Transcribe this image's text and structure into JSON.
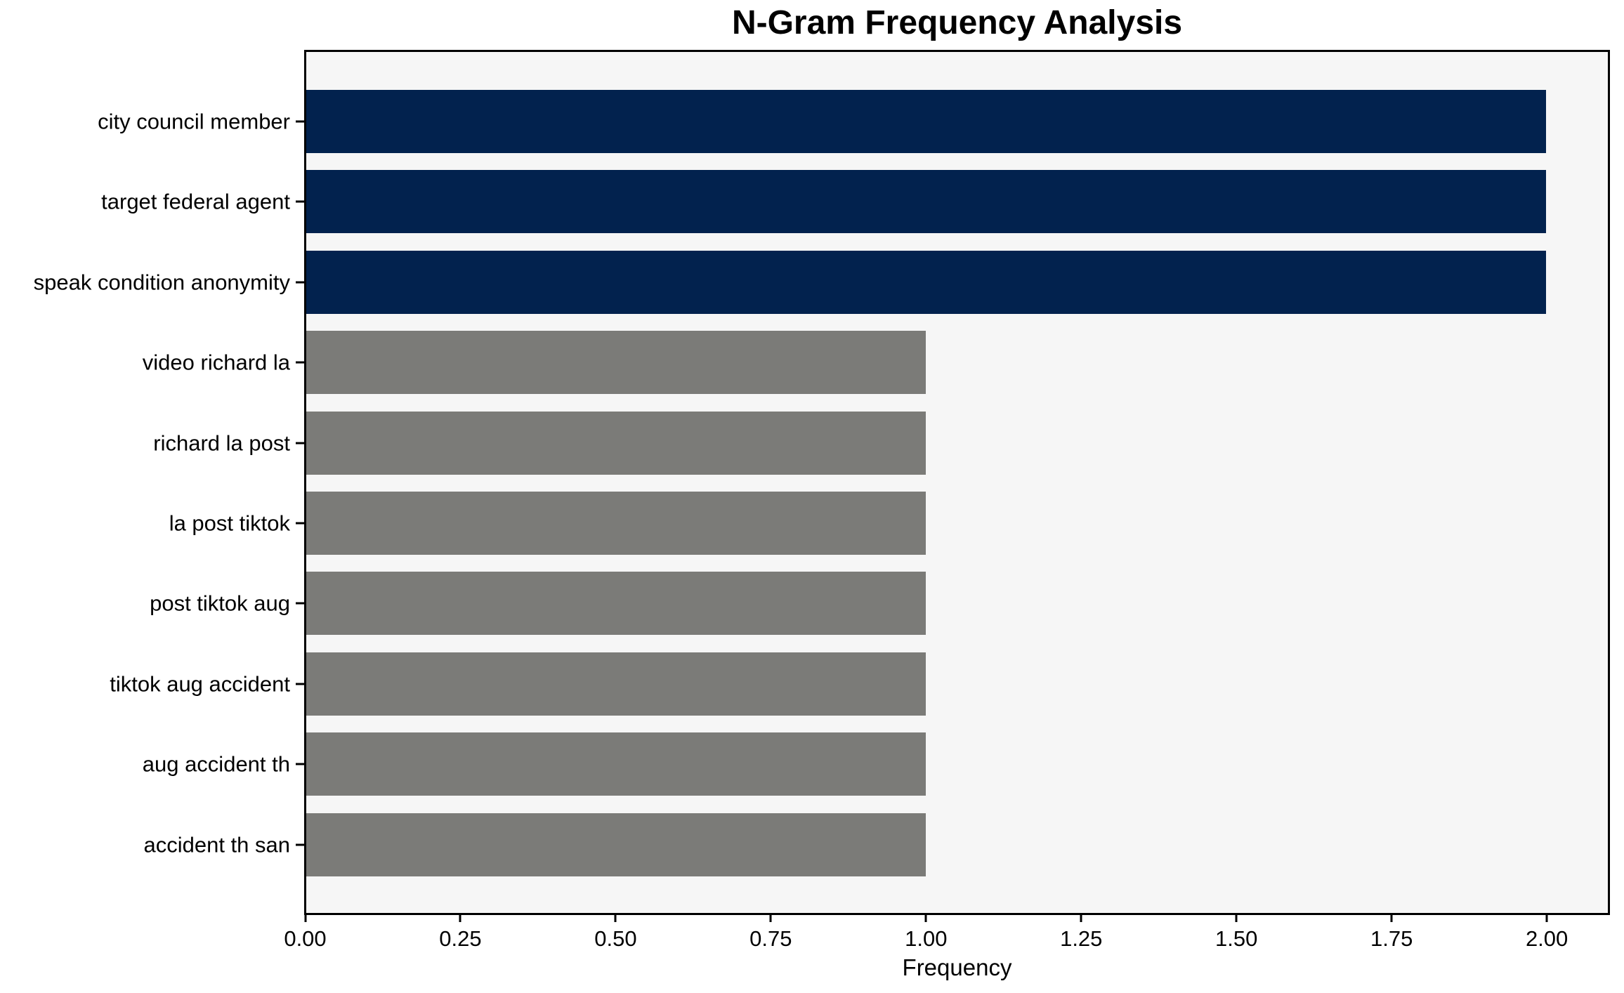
{
  "chart_data": {
    "type": "bar",
    "orientation": "horizontal",
    "title": "N-Gram Frequency Analysis",
    "xlabel": "Frequency",
    "categories": [
      "city council member",
      "target federal agent",
      "speak condition anonymity",
      "video richard la",
      "richard la post",
      "la post tiktok",
      "post tiktok aug",
      "tiktok aug accident",
      "aug accident th",
      "accident th san"
    ],
    "values": [
      2.0,
      2.0,
      2.0,
      1.0,
      1.0,
      1.0,
      1.0,
      1.0,
      1.0,
      1.0
    ],
    "bar_colors": [
      "#02224e",
      "#02224e",
      "#02224e",
      "#7b7b78",
      "#7b7b78",
      "#7b7b78",
      "#7b7b78",
      "#7b7b78",
      "#7b7b78",
      "#7b7b78"
    ],
    "xlim": [
      0,
      2.1
    ],
    "xtick_labels": [
      "0.00",
      "0.25",
      "0.50",
      "0.75",
      "1.00",
      "1.25",
      "1.50",
      "1.75",
      "2.00"
    ],
    "xtick_values": [
      0,
      0.25,
      0.5,
      0.75,
      1.0,
      1.25,
      1.5,
      1.75,
      2.0
    ],
    "grid": false,
    "legend_position": "none",
    "colors": {
      "highlight_navy": "#02224e",
      "base_gray": "#7b7b78",
      "plot_background": "#f6f6f6",
      "figure_background": "#ffffff",
      "axis": "#000000"
    }
  }
}
